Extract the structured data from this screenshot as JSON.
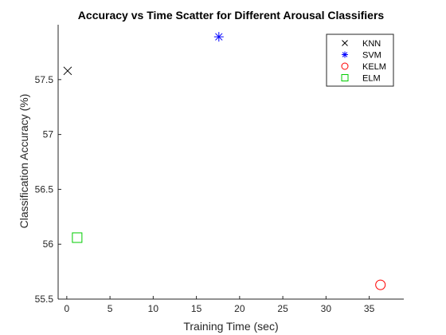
{
  "chart_data": {
    "type": "scatter",
    "title": "Accuracy vs Time Scatter for Different Arousal Classifiers",
    "xlabel": "Training Time (sec)",
    "ylabel": "Classification Accuracy (%)",
    "xlim": [
      -1,
      39
    ],
    "ylim": [
      55.5,
      58
    ],
    "xticks": [
      0,
      5,
      10,
      15,
      20,
      25,
      30,
      35
    ],
    "yticks": [
      55.5,
      56,
      56.5,
      57,
      57.5
    ],
    "ytick_labels": [
      "55.5",
      "56",
      "56.5",
      "57",
      "57.5"
    ],
    "grid": false,
    "legend_position": "top-right",
    "series": [
      {
        "name": "KNN",
        "marker": "x",
        "color": "#000000",
        "x": [
          0.1
        ],
        "y": [
          57.58
        ]
      },
      {
        "name": "SVM",
        "marker": "star",
        "color": "#0000ff",
        "x": [
          17.6
        ],
        "y": [
          57.89
        ]
      },
      {
        "name": "KELM",
        "marker": "circle",
        "color": "#ff0000",
        "x": [
          36.3
        ],
        "y": [
          55.63
        ]
      },
      {
        "name": "ELM",
        "marker": "square",
        "color": "#00cc00",
        "x": [
          1.2
        ],
        "y": [
          56.06
        ]
      }
    ]
  }
}
